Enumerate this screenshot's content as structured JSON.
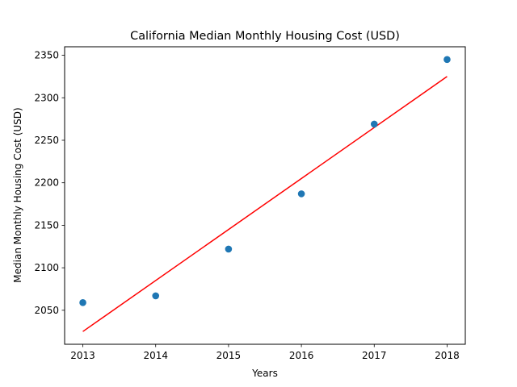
{
  "chart_data": {
    "type": "scatter",
    "title": "California Median Monthly Housing Cost (USD)",
    "xlabel": "Years",
    "ylabel": "Median Monthly Housing Cost (USD)",
    "x": [
      2013,
      2014,
      2015,
      2016,
      2017,
      2018
    ],
    "y": [
      2059,
      2067,
      2122,
      2187,
      2269,
      2345
    ],
    "fit_line": {
      "x": [
        2013,
        2018
      ],
      "y": [
        2025,
        2325
      ],
      "color": "#ff0000"
    },
    "xticks": [
      2013,
      2014,
      2015,
      2016,
      2017,
      2018
    ],
    "yticks": [
      2050,
      2100,
      2150,
      2200,
      2250,
      2300,
      2350
    ],
    "xlim": [
      2012.75,
      2018.25
    ],
    "ylim": [
      2010,
      2360
    ],
    "point_color": "#1f77b4",
    "grid": false,
    "legend": "none"
  }
}
